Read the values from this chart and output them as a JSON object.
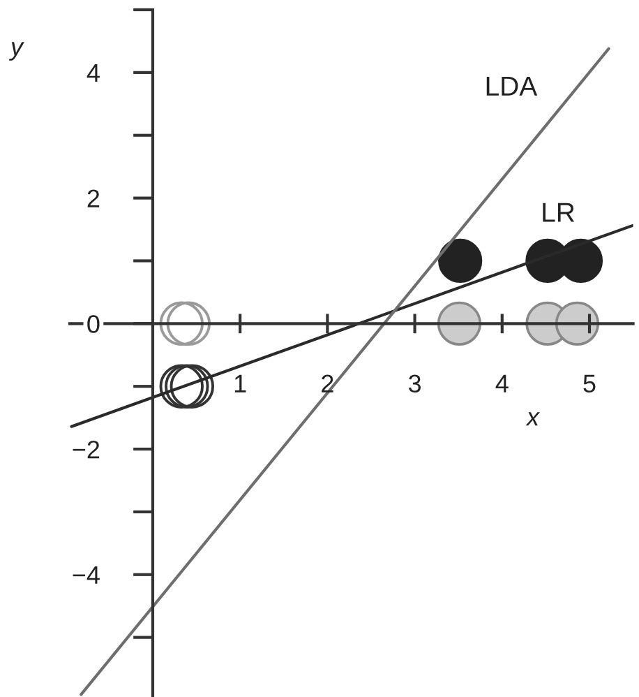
{
  "chart_data": {
    "type": "scatter",
    "xlabel": "x",
    "ylabel": "y",
    "xlim": [
      -0.95,
      5.5
    ],
    "ylim": [
      -5.95,
      5
    ],
    "xticks": [
      1,
      2,
      3,
      4,
      5
    ],
    "yticks": [
      {
        "value": -5,
        "label": null
      },
      {
        "value": -4,
        "label": "−4"
      },
      {
        "value": -3,
        "label": null
      },
      {
        "value": -2,
        "label": "−2"
      },
      {
        "value": -1,
        "label": null
      },
      0,
      {
        "value": 1,
        "label": null
      },
      2,
      {
        "value": 3,
        "label": null
      },
      4,
      {
        "value": 5,
        "label": null
      }
    ],
    "series": [
      {
        "marker": "circle",
        "color": "#9a9a9a",
        "x": [
          0.33,
          0.41
        ],
        "values": [
          0,
          0
        ]
      },
      {
        "marker": "circle",
        "color": "#333333",
        "x": [
          0.33,
          0.39,
          0.45
        ],
        "values": [
          -1,
          -1,
          -1
        ]
      },
      {
        "marker": "circle",
        "color": "#888888",
        "colors": [
          "#cccccc",
          "#cccccc",
          "#cccccc"
        ],
        "x": [
          3.51,
          4.52,
          4.86
        ],
        "values": [
          0,
          0,
          0
        ]
      },
      {
        "marker": "circle",
        "color": "#222222",
        "colors": [
          "#222222",
          "#222222",
          "#222222"
        ],
        "x": [
          3.52,
          4.52,
          4.9
        ],
        "values": [
          1,
          1,
          1
        ]
      },
      {
        "type": "line",
        "name": "LR",
        "color": "#2a2a2a",
        "x": [
          -0.93,
          5.49
        ],
        "values": [
          -1.64,
          1.56
        ]
      },
      {
        "type": "line",
        "name": "LDA",
        "color": "#6e6e6e",
        "x": [
          -0.82,
          5.22
        ],
        "values": [
          -5.91,
          4.38
        ]
      }
    ]
  }
}
